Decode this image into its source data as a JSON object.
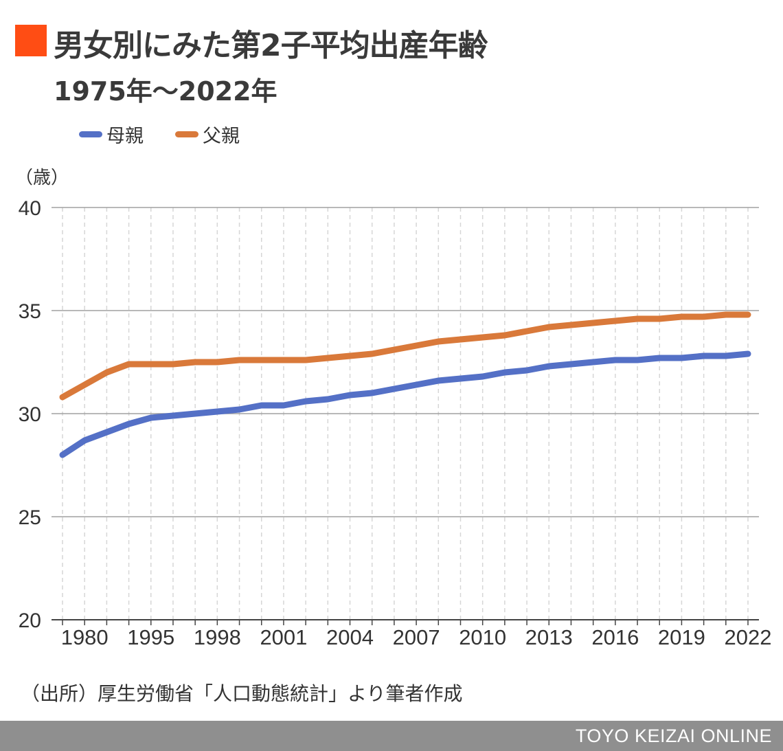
{
  "title": "男女別にみた第2子平均出産年齢",
  "subtitle": "1975年〜2022年",
  "unit_label": "（歳）",
  "source": "（出所）厚生労働省「人口動態統計」より筆者作成",
  "footer": "TOYO KEIZAI ONLINE",
  "colors": {
    "accent": "#ff4d14",
    "mother": "#5470c6",
    "father": "#d9793a",
    "footer": "#8f8f8f"
  },
  "chart_data": {
    "type": "line",
    "title": "男女別にみた第2子平均出産年齢",
    "subtitle": "1975年〜2022年",
    "ylabel": "（歳）",
    "ylim": [
      20,
      40
    ],
    "yticks": [
      20,
      25,
      30,
      35,
      40
    ],
    "x": [
      1975,
      1980,
      1985,
      1990,
      1995,
      1996,
      1997,
      1998,
      1999,
      2000,
      2001,
      2002,
      2003,
      2004,
      2005,
      2006,
      2007,
      2008,
      2009,
      2010,
      2011,
      2012,
      2013,
      2014,
      2015,
      2016,
      2017,
      2018,
      2019,
      2020,
      2021,
      2022
    ],
    "x_tick_labels": [
      "1980",
      "1995",
      "1998",
      "2001",
      "2004",
      "2007",
      "2010",
      "2013",
      "2016",
      "2019",
      "2022"
    ],
    "x_tick_positions": [
      1,
      4,
      7,
      10,
      13,
      16,
      19,
      22,
      25,
      28,
      31
    ],
    "grid": true,
    "legend_position": "top-left",
    "series": [
      {
        "name": "母親",
        "color": "#5470c6",
        "values": [
          28.0,
          28.7,
          29.1,
          29.5,
          29.8,
          29.9,
          30.0,
          30.1,
          30.2,
          30.4,
          30.4,
          30.6,
          30.7,
          30.9,
          31.0,
          31.2,
          31.4,
          31.6,
          31.7,
          31.8,
          32.0,
          32.1,
          32.3,
          32.4,
          32.5,
          32.6,
          32.6,
          32.7,
          32.7,
          32.8,
          32.8,
          32.9
        ]
      },
      {
        "name": "父親",
        "color": "#d9793a",
        "values": [
          30.8,
          31.4,
          32.0,
          32.4,
          32.4,
          32.4,
          32.5,
          32.5,
          32.6,
          32.6,
          32.6,
          32.6,
          32.7,
          32.8,
          32.9,
          33.1,
          33.3,
          33.5,
          33.6,
          33.7,
          33.8,
          34.0,
          34.2,
          34.3,
          34.4,
          34.5,
          34.6,
          34.6,
          34.7,
          34.7,
          34.8,
          34.8
        ]
      }
    ]
  }
}
